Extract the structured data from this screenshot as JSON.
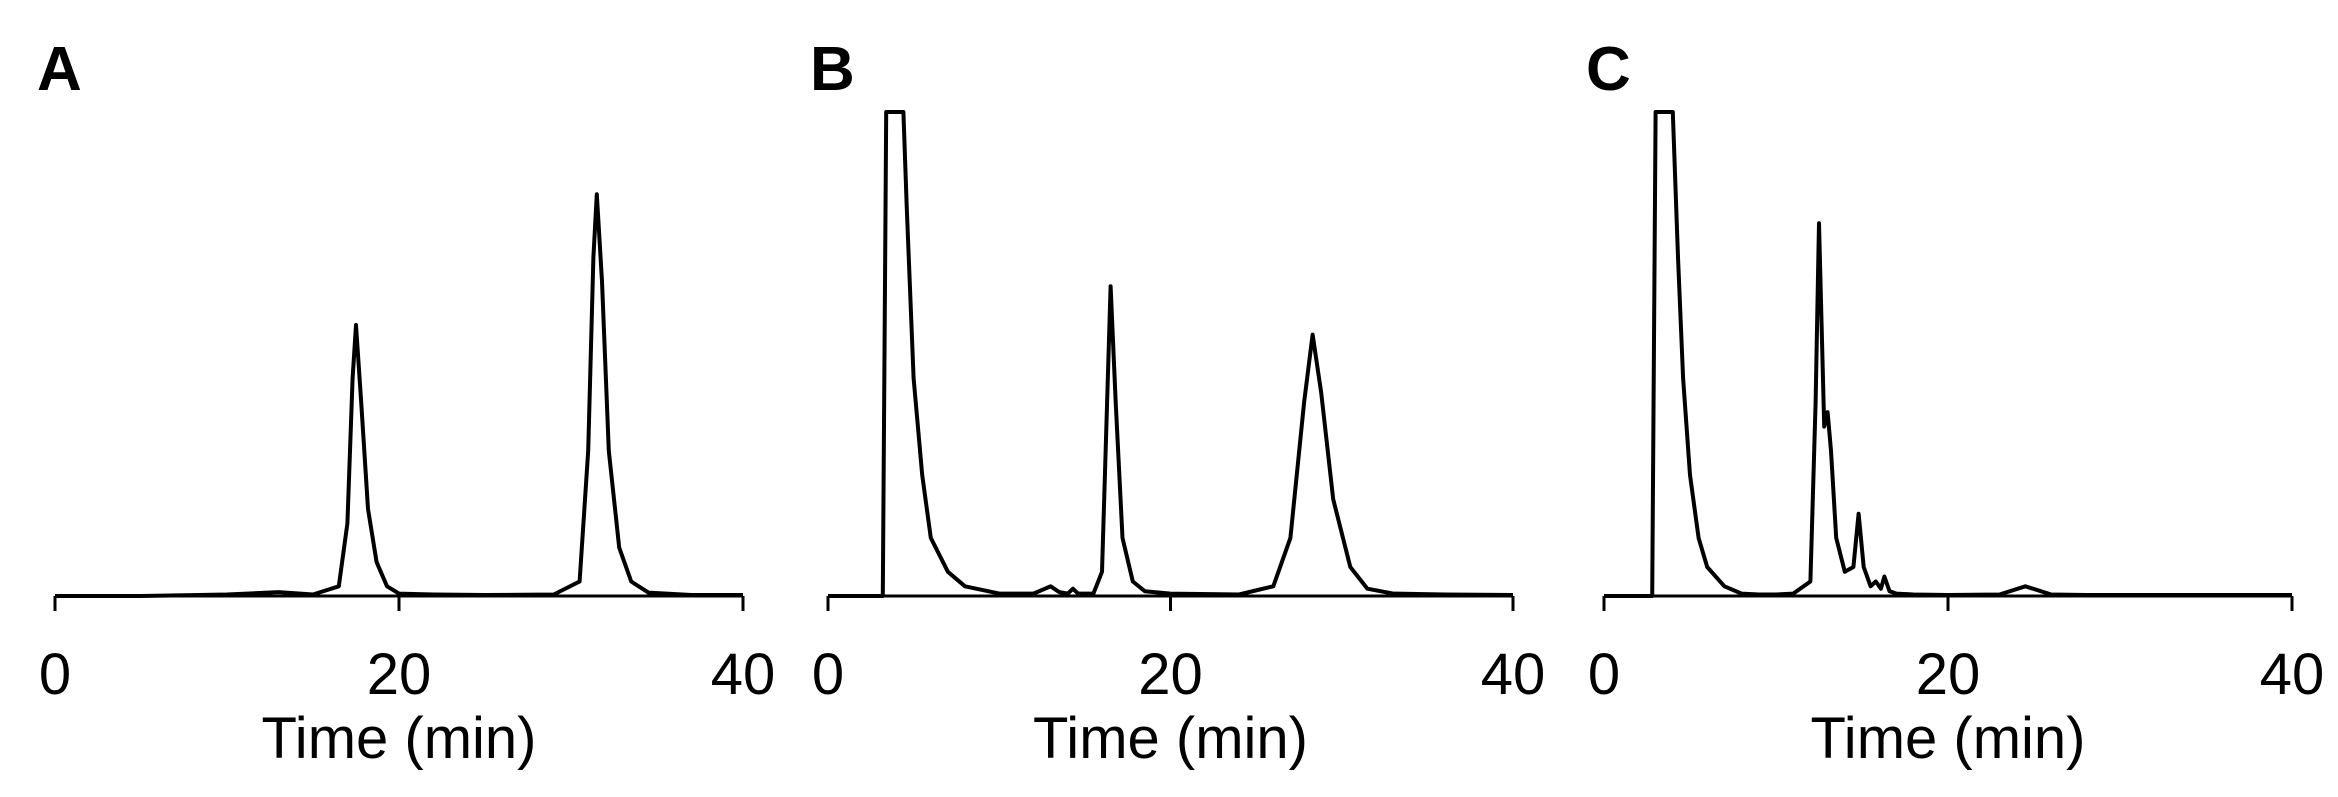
{
  "chart_data": [
    {
      "type": "line",
      "title": "A",
      "x_label": "Time (min)",
      "color": "#000000",
      "xlim": [
        0,
        40
      ],
      "xticks": [
        0,
        20,
        40
      ],
      "ylim": [
        0,
        100
      ],
      "x": [
        0,
        5,
        10,
        13,
        15,
        16.5,
        17,
        17.3,
        17.5,
        17.8,
        18.2,
        18.7,
        19.3,
        20,
        22,
        25,
        29,
        30.5,
        31,
        31.3,
        31.5,
        31.8,
        32.2,
        32.8,
        33.5,
        34.5,
        37,
        40
      ],
      "values": [
        0,
        0,
        0.3,
        0.8,
        0.3,
        2,
        15,
        45,
        56,
        40,
        18,
        7,
        2,
        0.5,
        0.3,
        0.2,
        0.3,
        3,
        30,
        70,
        83,
        65,
        30,
        10,
        3,
        0.7,
        0.2,
        0.2
      ]
    },
    {
      "type": "line",
      "title": "B",
      "x_label": "Time (min)",
      "color": "#000000",
      "xlim": [
        0,
        40
      ],
      "xticks": [
        0,
        20,
        40
      ],
      "ylim": [
        0,
        100
      ],
      "x": [
        0,
        3.2,
        3.4,
        3.6,
        4.0,
        4.4,
        4.6,
        5,
        5.5,
        6,
        7,
        8,
        10,
        12,
        13,
        13.5,
        14,
        14.3,
        14.6,
        15.5,
        16,
        16.3,
        16.5,
        16.8,
        17.2,
        17.8,
        18.5,
        20,
        24,
        26,
        27,
        27.8,
        28.3,
        28.8,
        29.5,
        30.5,
        31.5,
        33,
        36,
        40
      ],
      "values": [
        0,
        0,
        100,
        100,
        100,
        100,
        80,
        45,
        25,
        12,
        5,
        2,
        0.5,
        0.5,
        2,
        0.8,
        0.5,
        1.5,
        0.5,
        0.5,
        5,
        40,
        64,
        40,
        12,
        3,
        1,
        0.5,
        0.3,
        2,
        12,
        40,
        54,
        42,
        20,
        6,
        1.5,
        0.5,
        0.3,
        0.2
      ]
    },
    {
      "type": "line",
      "title": "C",
      "x_label": "Time (min)",
      "color": "#000000",
      "xlim": [
        0,
        40
      ],
      "xticks": [
        0,
        20,
        40
      ],
      "ylim": [
        0,
        100
      ],
      "x": [
        0,
        2.8,
        3.0,
        3.2,
        3.5,
        3.8,
        4.0,
        4.3,
        4.6,
        5,
        5.5,
        6,
        7,
        8,
        9,
        10,
        11,
        12,
        12.3,
        12.5,
        12.8,
        13,
        13.2,
        13.5,
        14,
        14.5,
        14.8,
        15.1,
        15.5,
        15.8,
        16.1,
        16.3,
        16.6,
        17,
        18,
        20,
        23,
        24.5,
        26,
        28,
        32,
        40
      ],
      "values": [
        0,
        0,
        100,
        100,
        100,
        100,
        100,
        70,
        45,
        25,
        12,
        6,
        2,
        0.5,
        0.3,
        0.3,
        0.5,
        3,
        40,
        77,
        35,
        38,
        30,
        12,
        5,
        6,
        17,
        6,
        2,
        3,
        1.5,
        4,
        1,
        0.5,
        0.3,
        0.2,
        0.3,
        2,
        0.3,
        0.2,
        0.2,
        0.2
      ]
    }
  ]
}
